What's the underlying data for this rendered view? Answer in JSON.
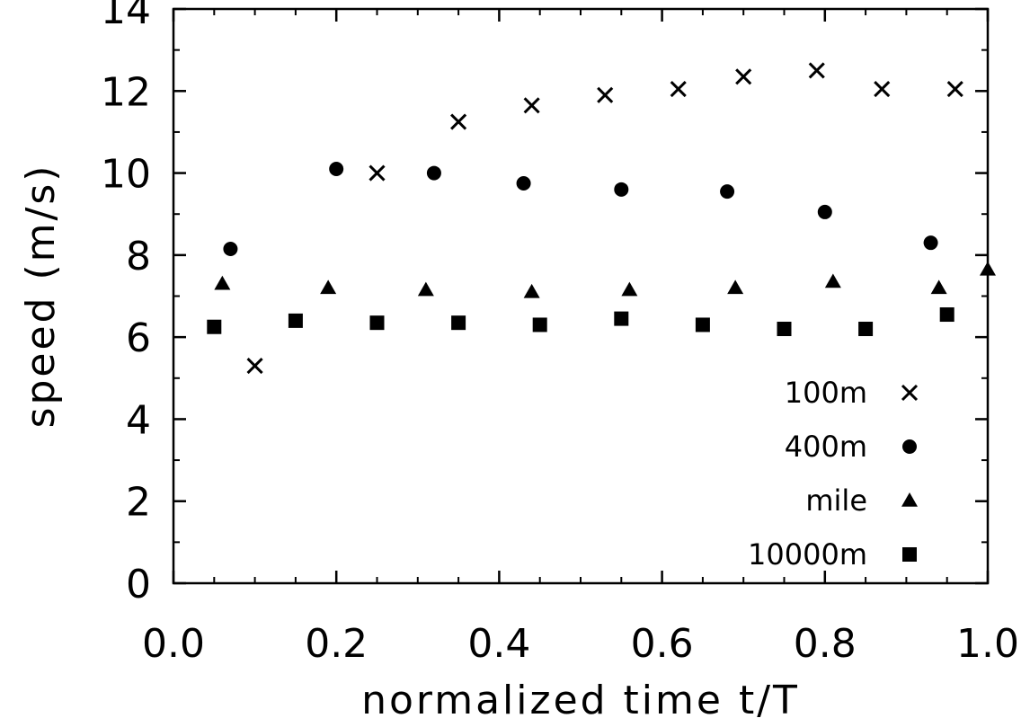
{
  "chart_data": {
    "type": "scatter",
    "title": "",
    "xlabel": "normalized time t/T",
    "ylabel": "speed (m/s)",
    "xlim": [
      0.0,
      1.0
    ],
    "ylim": [
      0,
      14
    ],
    "xticks": [
      "0.0",
      "0.2",
      "0.4",
      "0.6",
      "0.8",
      "1.0"
    ],
    "yticks": [
      "0",
      "2",
      "4",
      "6",
      "8",
      "10",
      "12",
      "14"
    ],
    "legend_position": "bottom-right",
    "series": [
      {
        "name": "100m",
        "marker": "x",
        "x": [
          0.1,
          0.25,
          0.35,
          0.44,
          0.53,
          0.62,
          0.7,
          0.79,
          0.87,
          0.96
        ],
        "y": [
          5.3,
          10.0,
          11.25,
          11.65,
          11.9,
          12.05,
          12.35,
          12.5,
          12.05,
          12.05
        ]
      },
      {
        "name": "400m",
        "marker": "circle",
        "x": [
          0.07,
          0.2,
          0.32,
          0.43,
          0.55,
          0.68,
          0.8,
          0.93
        ],
        "y": [
          8.15,
          10.1,
          10.0,
          9.75,
          9.6,
          9.55,
          9.05,
          8.3
        ]
      },
      {
        "name": "mile",
        "marker": "triangle",
        "x": [
          0.06,
          0.19,
          0.31,
          0.44,
          0.56,
          0.69,
          0.81,
          0.94,
          1.0
        ],
        "y": [
          7.3,
          7.2,
          7.15,
          7.1,
          7.15,
          7.2,
          7.35,
          7.2,
          7.65
        ]
      },
      {
        "name": "10000m",
        "marker": "square",
        "x": [
          0.05,
          0.15,
          0.25,
          0.35,
          0.45,
          0.55,
          0.65,
          0.75,
          0.85,
          0.95
        ],
        "y": [
          6.25,
          6.4,
          6.35,
          6.35,
          6.3,
          6.45,
          6.3,
          6.2,
          6.2,
          6.55
        ]
      }
    ]
  }
}
